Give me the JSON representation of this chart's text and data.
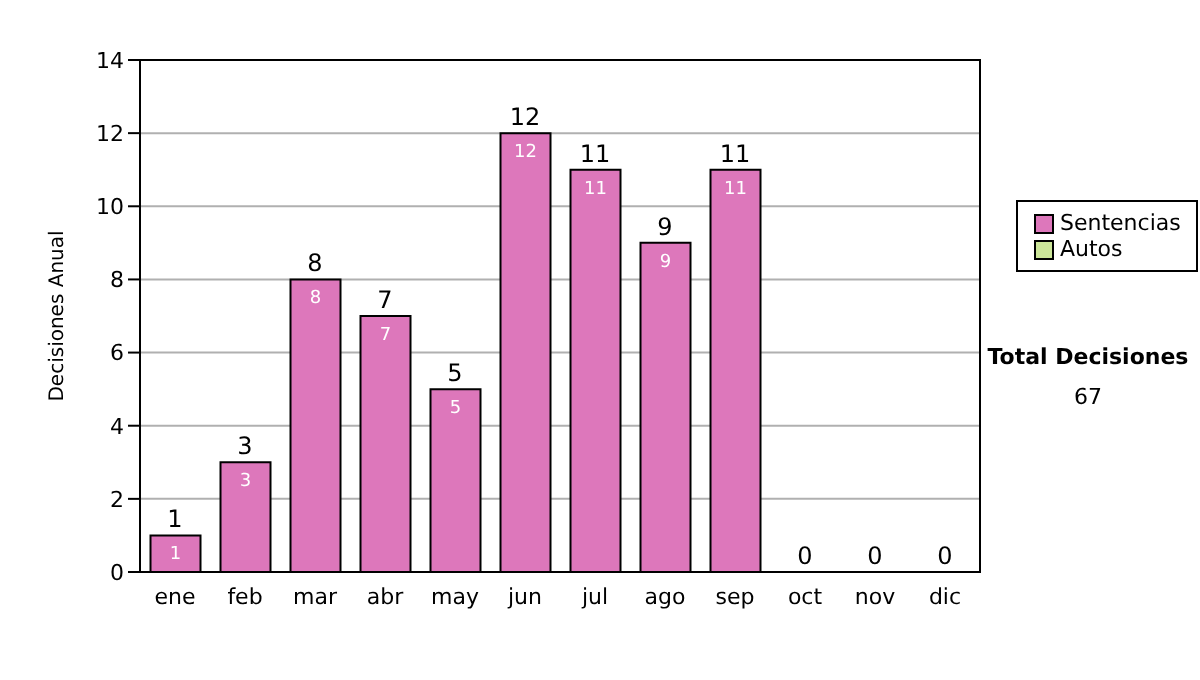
{
  "chart_data": {
    "type": "bar",
    "ylabel": "Decisiones Anual",
    "categories": [
      "ene",
      "feb",
      "mar",
      "abr",
      "may",
      "jun",
      "jul",
      "ago",
      "sep",
      "oct",
      "nov",
      "dic"
    ],
    "series": [
      {
        "name": "Sentencias",
        "color": "#dd77bb",
        "values": [
          1,
          3,
          8,
          7,
          5,
          12,
          11,
          9,
          11,
          0,
          0,
          0
        ],
        "value_labels": [
          "1",
          "3",
          "8",
          "7",
          "5",
          "12",
          "11",
          "9",
          "11",
          null,
          null,
          null
        ]
      },
      {
        "name": "Autos",
        "color": "#cce699",
        "values": [
          0,
          0,
          0,
          0,
          0,
          0,
          0,
          0,
          0,
          0,
          0,
          0
        ]
      }
    ],
    "stacked": true,
    "totals": [
      "1",
      "3",
      "8",
      "7",
      "5",
      "12",
      "11",
      "9",
      "11",
      "0",
      "0",
      "0"
    ],
    "ylim": [
      0,
      14
    ],
    "yticks": [
      0,
      2,
      4,
      6,
      8,
      10,
      12,
      14
    ],
    "grid": "y",
    "legend": "right",
    "annotations": [
      "Total Decisiones",
      "67"
    ]
  }
}
